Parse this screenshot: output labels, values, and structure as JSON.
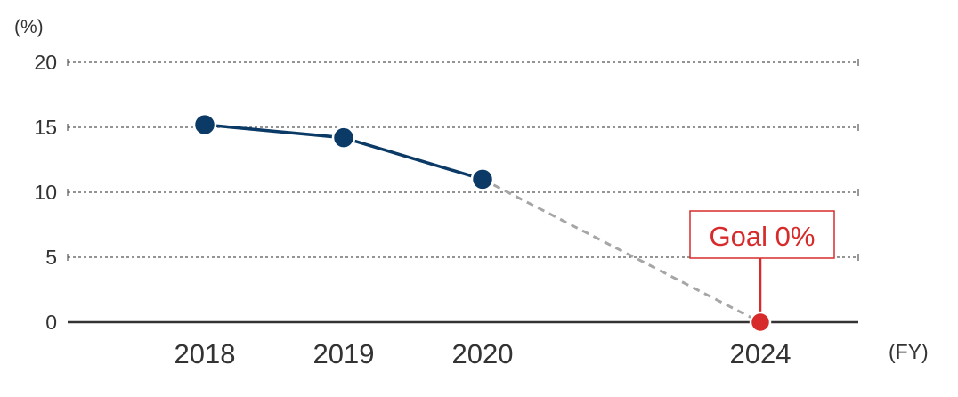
{
  "chart_data": {
    "type": "line",
    "y_unit_label": "(%)",
    "x_unit_label": "(FY)",
    "ylim": [
      0,
      20
    ],
    "y_ticks": [
      0,
      5,
      10,
      15,
      20
    ],
    "grid": true,
    "categories": [
      "2018",
      "2019",
      "2020",
      "2024"
    ],
    "series": [
      {
        "values": [
          15.2,
          14.2,
          11.0,
          null
        ],
        "color": "#0b3a66",
        "style": "solid"
      },
      {
        "values": [
          null,
          null,
          11.0,
          0
        ],
        "color": "#a6a6a6",
        "style": "dashed"
      }
    ],
    "goal": {
      "category": "2024",
      "value": 0,
      "label": "Goal 0%",
      "color": "#d72b2b"
    }
  }
}
